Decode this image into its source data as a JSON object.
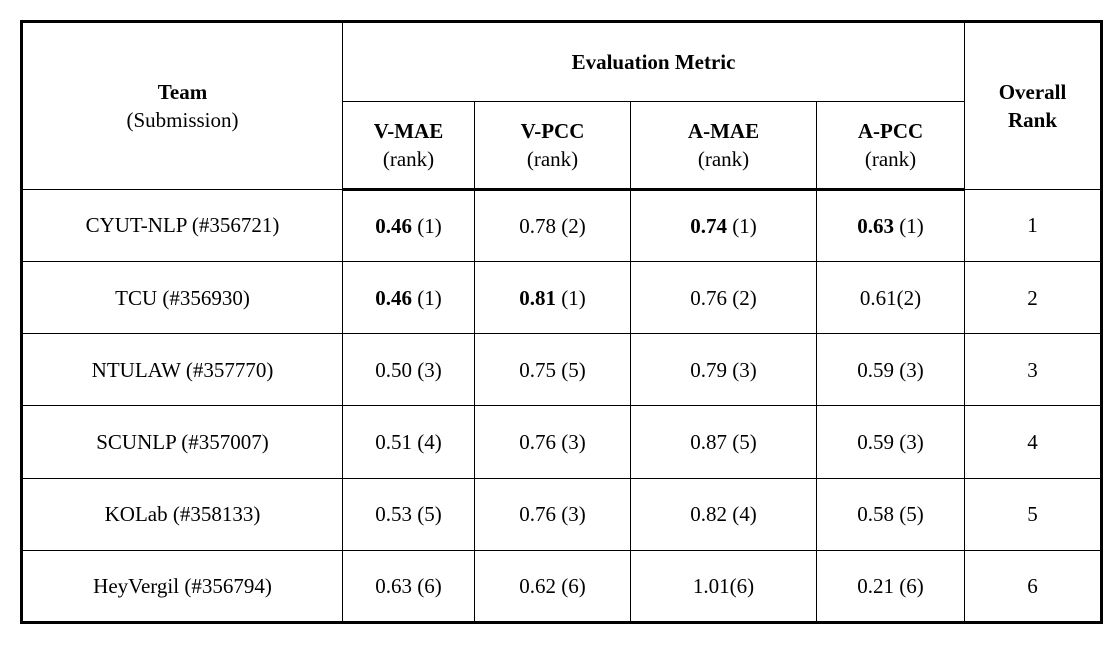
{
  "table": {
    "header": {
      "team": {
        "line1": "Team",
        "line2": "(Submission)"
      },
      "metric_group": "Evaluation Metric",
      "overall": {
        "line1": "Overall",
        "line2": "Rank"
      },
      "metric_columns": [
        {
          "label": "V-MAE",
          "sublabel": "(rank)"
        },
        {
          "label": "V-PCC",
          "sublabel": "(rank)"
        },
        {
          "label": "A-MAE",
          "sublabel": "(rank)"
        },
        {
          "label": "A-PCC",
          "sublabel": "(rank)"
        }
      ]
    },
    "rows": [
      {
        "team": "CYUT-NLP (#356721)",
        "metrics": [
          {
            "value": "0.46",
            "sep": " ",
            "rank": "(1)",
            "bold": true
          },
          {
            "value": "0.78",
            "sep": " ",
            "rank": "(2)",
            "bold": false
          },
          {
            "value": "0.74",
            "sep": " ",
            "rank": "(1)",
            "bold": true
          },
          {
            "value": "0.63",
            "sep": " ",
            "rank": "(1)",
            "bold": true
          }
        ],
        "overall": "1"
      },
      {
        "team": "TCU (#356930)",
        "metrics": [
          {
            "value": "0.46",
            "sep": " ",
            "rank": "(1)",
            "bold": true
          },
          {
            "value": "0.81",
            "sep": " ",
            "rank": "(1)",
            "bold": true
          },
          {
            "value": "0.76",
            "sep": " ",
            "rank": "(2)",
            "bold": false
          },
          {
            "value": "0.61",
            "sep": "",
            "rank": "(2)",
            "bold": false
          }
        ],
        "overall": "2"
      },
      {
        "team": "NTULAW (#357770)",
        "metrics": [
          {
            "value": "0.50",
            "sep": " ",
            "rank": "(3)",
            "bold": false
          },
          {
            "value": "0.75",
            "sep": " ",
            "rank": "(5)",
            "bold": false
          },
          {
            "value": "0.79",
            "sep": " ",
            "rank": "(3)",
            "bold": false
          },
          {
            "value": "0.59",
            "sep": " ",
            "rank": "(3)",
            "bold": false
          }
        ],
        "overall": "3"
      },
      {
        "team": "SCUNLP (#357007)",
        "metrics": [
          {
            "value": "0.51",
            "sep": " ",
            "rank": "(4)",
            "bold": false
          },
          {
            "value": "0.76",
            "sep": " ",
            "rank": "(3)",
            "bold": false
          },
          {
            "value": "0.87",
            "sep": " ",
            "rank": "(5)",
            "bold": false
          },
          {
            "value": "0.59",
            "sep": " ",
            "rank": "(3)",
            "bold": false
          }
        ],
        "overall": "4"
      },
      {
        "team": "KOLab (#358133)",
        "metrics": [
          {
            "value": "0.53",
            "sep": " ",
            "rank": "(5)",
            "bold": false
          },
          {
            "value": "0.76",
            "sep": " ",
            "rank": "(3)",
            "bold": false
          },
          {
            "value": "0.82",
            "sep": " ",
            "rank": "(4)",
            "bold": false
          },
          {
            "value": "0.58",
            "sep": " ",
            "rank": "(5)",
            "bold": false
          }
        ],
        "overall": "5"
      },
      {
        "team": "HeyVergil (#356794)",
        "metrics": [
          {
            "value": "0.63",
            "sep": " ",
            "rank": "(6)",
            "bold": false
          },
          {
            "value": "0.62",
            "sep": " ",
            "rank": "(6)",
            "bold": false
          },
          {
            "value": "1.01",
            "sep": "",
            "rank": "(6)",
            "bold": false
          },
          {
            "value": "0.21",
            "sep": " ",
            "rank": "(6)",
            "bold": false
          }
        ],
        "overall": "6"
      }
    ]
  },
  "colors": {
    "border": "#000000",
    "text": "#000000",
    "background": "#ffffff"
  }
}
